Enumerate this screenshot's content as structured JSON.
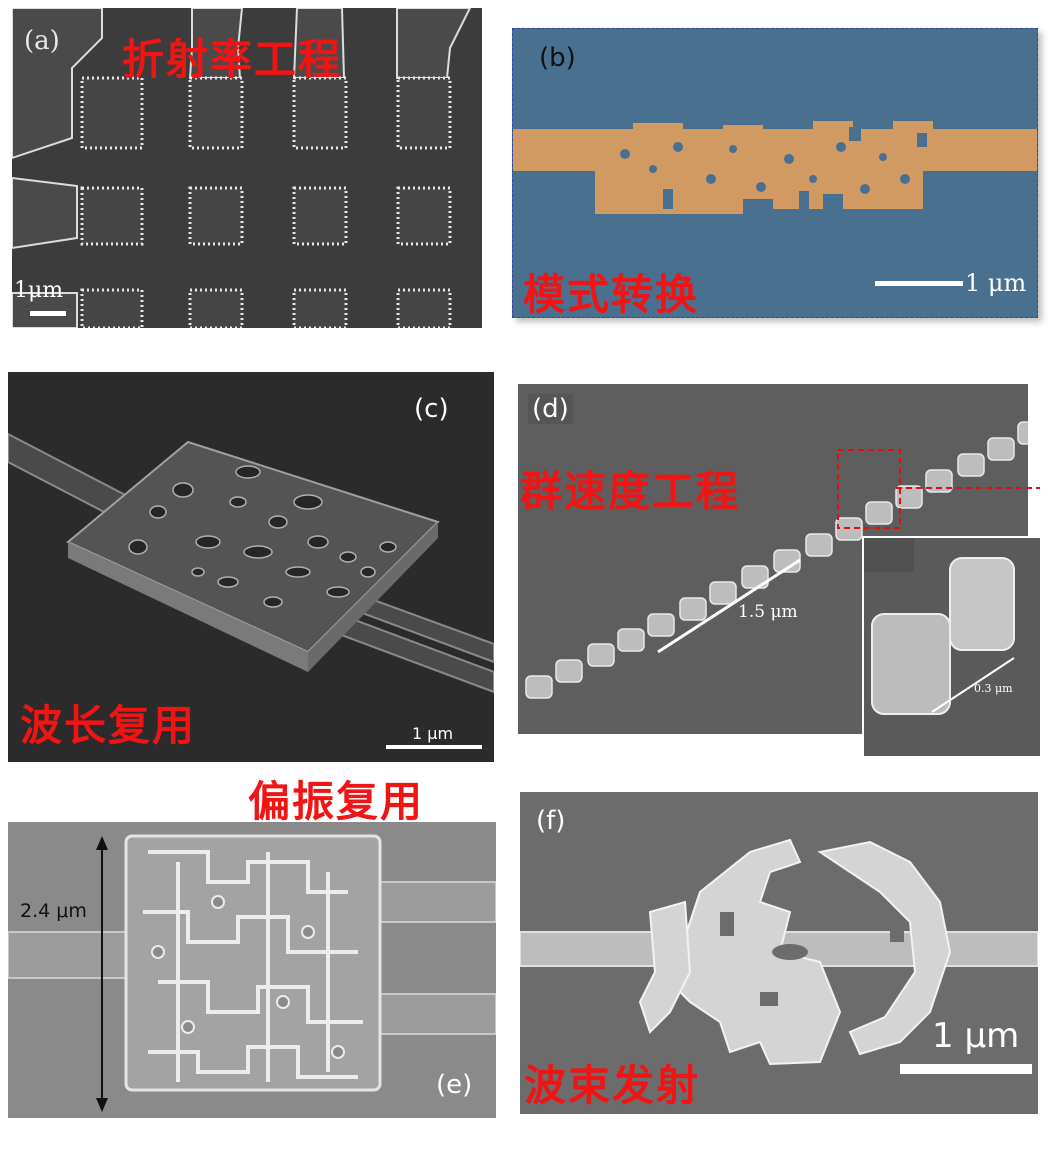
{
  "panels": {
    "a": {
      "label": "(a)",
      "title": "折射率工程",
      "scale": "1μm"
    },
    "b": {
      "label": "(b)",
      "title": "模式转换",
      "scale": "1 μm"
    },
    "c": {
      "label": "(c)",
      "title": "波长复用",
      "scale": "1 μm"
    },
    "d": {
      "label": "(d)",
      "title": "群速度工程",
      "scale_main": "1.5 μm",
      "scale_inset": "0.3 μm"
    },
    "e": {
      "label": "(e)",
      "title": "偏振复用",
      "dimension": "2.4 μm"
    },
    "f": {
      "label": "(f)",
      "title": "波束发射",
      "scale": "1 μm"
    }
  },
  "colors": {
    "annotation": "#f01414",
    "waveguide_orange": "#d29a63",
    "substrate_blue": "#4a7090"
  }
}
